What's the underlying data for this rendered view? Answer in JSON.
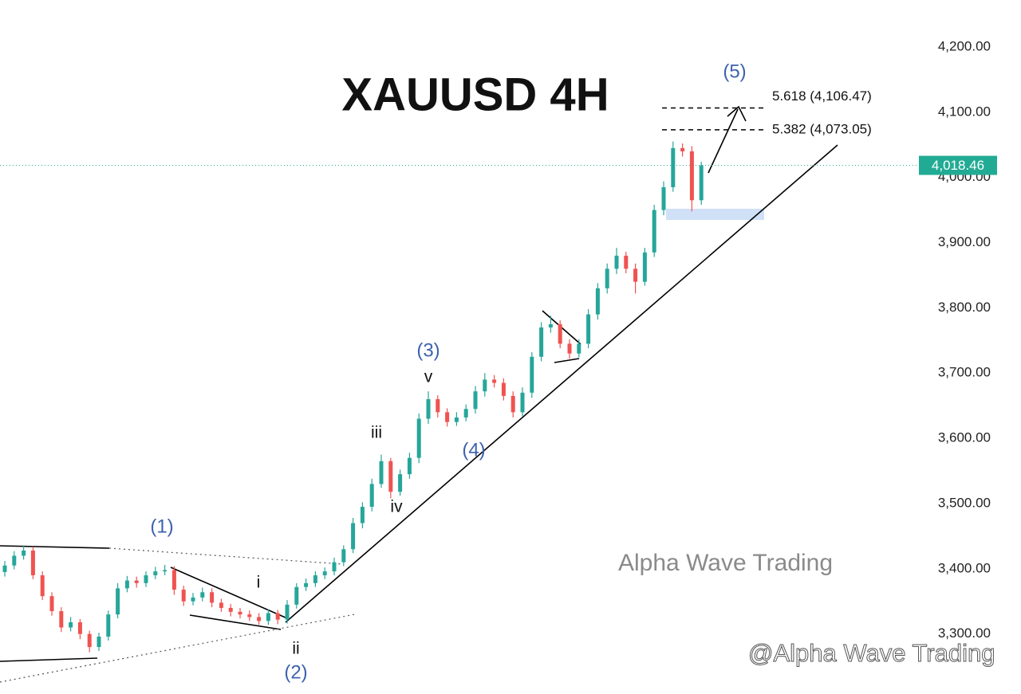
{
  "chart_data": {
    "type": "candlestick",
    "title": "XAUUSD 4H",
    "open": [
      3395,
      3405,
      3420,
      3428,
      3390,
      3358,
      3335,
      3310,
      3318,
      3300,
      3280,
      3296,
      3330,
      3370,
      3382,
      3378,
      3390,
      3396,
      3398,
      3368,
      3350,
      3356,
      3364,
      3348,
      3340,
      3334,
      3330,
      3326,
      3320,
      3332,
      3322,
      3345,
      3372,
      3378,
      3390,
      3396,
      3410,
      3430,
      3470,
      3495,
      3530,
      3565,
      3518,
      3545,
      3570,
      3630,
      3660,
      3640,
      3625,
      3632,
      3645,
      3672,
      3690,
      3685,
      3665,
      3640,
      3670,
      3725,
      3770,
      3775,
      3745,
      3730,
      3745,
      3790,
      3830,
      3860,
      3880,
      3860,
      3840,
      3885,
      3950,
      3985,
      4045,
      4040,
      3965
    ],
    "high": [
      3412,
      3427,
      3436,
      3434,
      3396,
      3364,
      3341,
      3326,
      3323,
      3305,
      3302,
      3336,
      3378,
      3389,
      3388,
      3396,
      3403,
      3406,
      3404,
      3374,
      3363,
      3371,
      3370,
      3354,
      3346,
      3340,
      3336,
      3332,
      3338,
      3337,
      3352,
      3378,
      3385,
      3396,
      3402,
      3417,
      3436,
      3478,
      3502,
      3538,
      3575,
      3570,
      3552,
      3578,
      3638,
      3672,
      3666,
      3646,
      3640,
      3652,
      3680,
      3700,
      3697,
      3692,
      3672,
      3678,
      3732,
      3778,
      3788,
      3781,
      3752,
      3752,
      3798,
      3838,
      3868,
      3892,
      3886,
      3868,
      3892,
      3958,
      3994,
      4055,
      4052,
      4048,
      4024
    ],
    "low": [
      3388,
      3399,
      3414,
      3384,
      3352,
      3328,
      3303,
      3304,
      3292,
      3272,
      3274,
      3290,
      3324,
      3364,
      3371,
      3372,
      3384,
      3390,
      3360,
      3343,
      3344,
      3350,
      3341,
      3334,
      3327,
      3324,
      3320,
      3314,
      3314,
      3315,
      3316,
      3339,
      3366,
      3372,
      3384,
      3390,
      3404,
      3424,
      3462,
      3488,
      3524,
      3508,
      3512,
      3538,
      3562,
      3622,
      3632,
      3618,
      3619,
      3626,
      3638,
      3664,
      3678,
      3658,
      3632,
      3634,
      3662,
      3718,
      3762,
      3738,
      3722,
      3724,
      3738,
      3782,
      3822,
      3852,
      3853,
      3822,
      3834,
      3878,
      3942,
      3978,
      4032,
      3948,
      3958
    ],
    "close": [
      3405,
      3420,
      3428,
      3390,
      3358,
      3335,
      3310,
      3318,
      3300,
      3280,
      3296,
      3330,
      3370,
      3382,
      3378,
      3390,
      3396,
      3398,
      3368,
      3350,
      3356,
      3364,
      3348,
      3340,
      3334,
      3330,
      3326,
      3320,
      3332,
      3322,
      3345,
      3372,
      3378,
      3390,
      3396,
      3410,
      3430,
      3470,
      3495,
      3530,
      3565,
      3518,
      3545,
      3570,
      3630,
      3660,
      3640,
      3625,
      3632,
      3645,
      3672,
      3690,
      3685,
      3665,
      3640,
      3670,
      3725,
      3770,
      3775,
      3745,
      3730,
      3745,
      3790,
      3830,
      3860,
      3880,
      3860,
      3840,
      3885,
      3950,
      3985,
      4045,
      4040,
      3965,
      4018.46
    ],
    "up_color": "#26a69a",
    "down_color": "#ef5350",
    "ylim": [
      3208,
      4272
    ],
    "yticks": [
      {
        "value": 3300,
        "label": "3,300.00"
      },
      {
        "value": 3400,
        "label": "3,400.00"
      },
      {
        "value": 3500,
        "label": "3,500.00"
      },
      {
        "value": 3600,
        "label": "3,600.00"
      },
      {
        "value": 3700,
        "label": "3,700.00"
      },
      {
        "value": 3800,
        "label": "3,800.00"
      },
      {
        "value": 3900,
        "label": "3,900.00"
      },
      {
        "value": 4000,
        "label": "4,000.00"
      },
      {
        "value": 4100,
        "label": "4,100.00"
      },
      {
        "value": 4200,
        "label": "4,200.00"
      }
    ],
    "last_price": {
      "value": 4018.46,
      "label": "4,018.46"
    },
    "levels": [
      {
        "value": 4106.47,
        "label": "5.618 (4,106.47)"
      },
      {
        "value": 4073.05,
        "label": "5.382 (4,073.05)"
      }
    ],
    "annotations": [
      "(1)",
      "(2)",
      "(3)",
      "(4)",
      "(5)",
      "i",
      "ii",
      "iii",
      "iv",
      "v"
    ],
    "watermark": "Alpha Wave Trading",
    "credit": "@Alpha Wave Trading"
  }
}
